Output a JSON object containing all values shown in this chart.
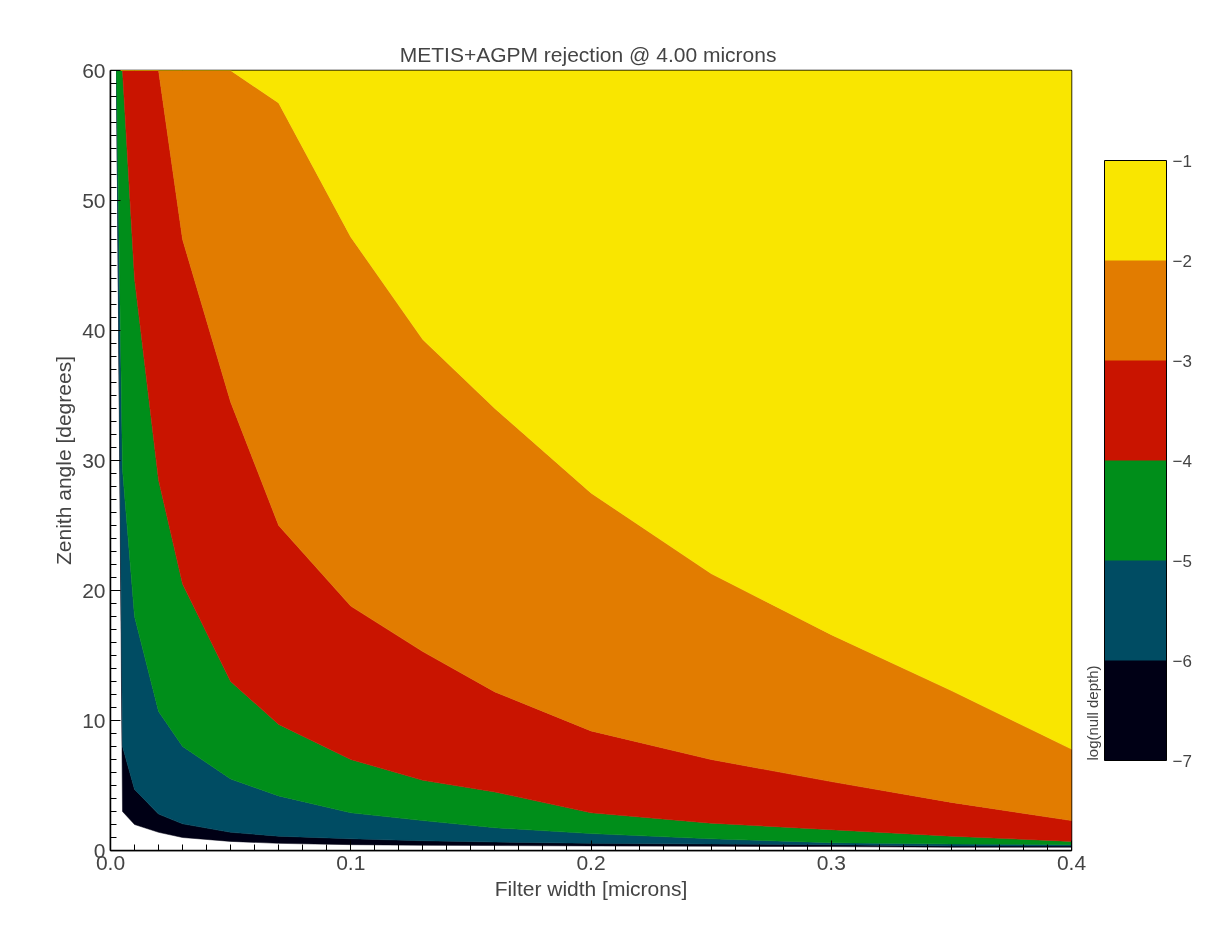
{
  "chart_data": {
    "type": "area",
    "stacked": true,
    "title": "METIS+AGPM rejection @  4.00 microns",
    "xlabel": "Filter width [microns]",
    "ylabel": "Zenith angle [degrees]",
    "clabel": "log(null depth)",
    "xlim": [
      0,
      0.4
    ],
    "ylim": [
      0,
      60
    ],
    "xticks": [
      {
        "value": 0,
        "label": "0.0"
      },
      0.1,
      0.2,
      0.3,
      0.4
    ],
    "yticks": [
      0,
      10,
      20,
      30,
      40,
      50,
      60
    ],
    "clim": [
      -7,
      -1
    ],
    "cticks": [
      -7,
      -6,
      -5,
      -4,
      -3,
      -2,
      -1
    ],
    "x": [
      0,
      0.0025,
      0.005,
      0.01,
      0.02,
      0.03,
      0.05,
      0.07,
      0.1,
      0.13,
      0.16,
      0.2,
      0.25,
      0.3,
      0.35,
      0.4
    ],
    "series": [
      {
        "color": "#ffffff",
        "values": [
          60,
          60,
          3.0,
          2.0,
          1.4,
          1.0,
          0.7,
          0.55,
          0.45,
          0.4,
          0.38,
          0.35,
          0.33,
          0.3,
          0.25,
          0.25
        ]
      },
      {
        "color": "#000015",
        "values": [
          0,
          0,
          5.0,
          2.7,
          1.4,
          1.05,
          0.7,
          0.55,
          0.45,
          0.35,
          0.27,
          0.2,
          0.17,
          0.15,
          0.1,
          0.1
        ]
      },
      {
        "color": "#004c63",
        "values": [
          0,
          0,
          21.3,
          13.3,
          7.9,
          5.95,
          4.1,
          3.1,
          2.0,
          1.55,
          1.1,
          0.75,
          0.4,
          0.15,
          0.15,
          0.1
        ]
      },
      {
        "color": "#008e1a",
        "values": [
          0,
          0,
          30.7,
          26,
          17.8,
          12.5,
          7.5,
          5.5,
          4.1,
          3.1,
          2.75,
          1.6,
          1.2,
          1.0,
          0.6,
          0.25
        ]
      },
      {
        "color": "#c91400",
        "values": [
          0,
          0,
          0,
          16,
          31.5,
          26.5,
          21.5,
          15.3,
          11.8,
          9.9,
          7.7,
          6.3,
          4.9,
          3.7,
          2.6,
          1.6
        ]
      },
      {
        "color": "#e27c00",
        "values": [
          0,
          0,
          0,
          0,
          0,
          13,
          25.5,
          32.5,
          28.4,
          24,
          21.8,
          18.3,
          14.3,
          11.3,
          8.6,
          5.5
        ]
      },
      {
        "color": "#f9e600",
        "values": [
          0,
          0,
          0,
          0,
          0,
          0,
          0,
          2.5,
          12.8,
          20.7,
          26,
          32.5,
          38.7,
          43.4,
          47.7,
          52.2
        ]
      }
    ]
  }
}
